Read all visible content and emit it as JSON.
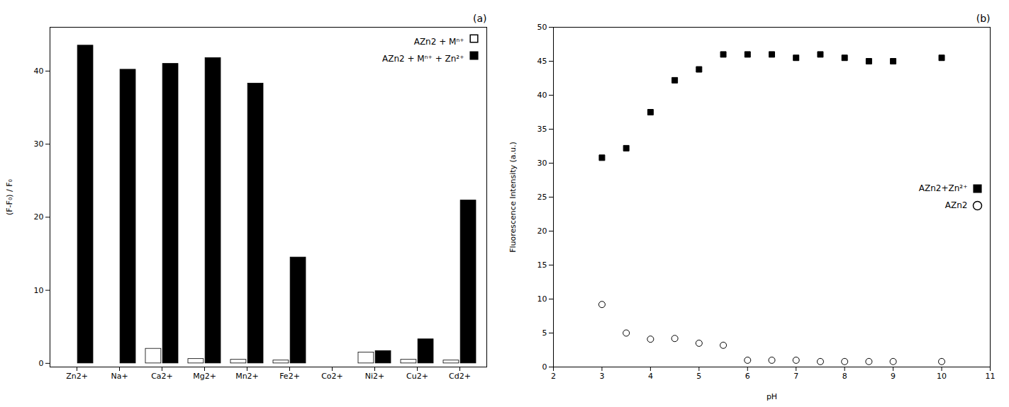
{
  "chart_data": [
    {
      "type": "bar",
      "title": "(a)",
      "categories": [
        "Zn2+",
        "Na+",
        "Ca2+",
        "Mg2+",
        "Mn2+",
        "Fe2+",
        "Co2+",
        "Ni2+",
        "Cu2+",
        "Cd2+"
      ],
      "series": [
        {
          "name": "AZn2 + Mⁿ⁺",
          "color": "#ffffff",
          "values": [
            0,
            0,
            2.0,
            0.6,
            0.5,
            0.4,
            0,
            1.5,
            0.5,
            0.4
          ]
        },
        {
          "name": "AZn2 + Mⁿ⁺ + Zn²⁺",
          "color": "#000000",
          "values": [
            43.5,
            40.2,
            41.0,
            41.8,
            38.3,
            14.5,
            0,
            1.7,
            3.3,
            22.3
          ]
        }
      ],
      "ylabel": "(F-F₀) / F₀",
      "ylim": [
        -0.5,
        46
      ],
      "yticks": [
        0,
        10,
        20,
        30,
        40
      ],
      "legend": "upper right",
      "grid": false
    },
    {
      "type": "scatter",
      "title": "(b)",
      "x": [
        3.0,
        3.5,
        4.0,
        4.5,
        5.0,
        5.5,
        6.0,
        6.5,
        7.0,
        7.5,
        8.0,
        8.5,
        9.0,
        10.0
      ],
      "series": [
        {
          "name": "AZn2+Zn²⁺",
          "color": "#000000",
          "marker": "square",
          "values": [
            30.8,
            32.2,
            37.5,
            42.2,
            43.8,
            46.0,
            46.0,
            46.0,
            45.5,
            46.0,
            45.5,
            45.0,
            45.0,
            45.5
          ]
        },
        {
          "name": "AZn2",
          "color": "#ffffff",
          "marker": "circle",
          "values": [
            9.2,
            5.0,
            4.1,
            4.2,
            3.5,
            3.2,
            1.0,
            1.0,
            1.0,
            0.8,
            0.8,
            0.8,
            0.8,
            0.8
          ]
        }
      ],
      "xlabel": "pH",
      "ylabel": "Fluorescence Intensity (a.u.)",
      "xlim": [
        2,
        11
      ],
      "ylim": [
        0,
        50
      ],
      "xticks": [
        2,
        3,
        4,
        5,
        6,
        7,
        8,
        9,
        10,
        11
      ],
      "yticks": [
        0,
        5,
        10,
        15,
        20,
        25,
        30,
        35,
        40,
        45,
        50
      ],
      "legend": "center right",
      "grid": false
    }
  ]
}
